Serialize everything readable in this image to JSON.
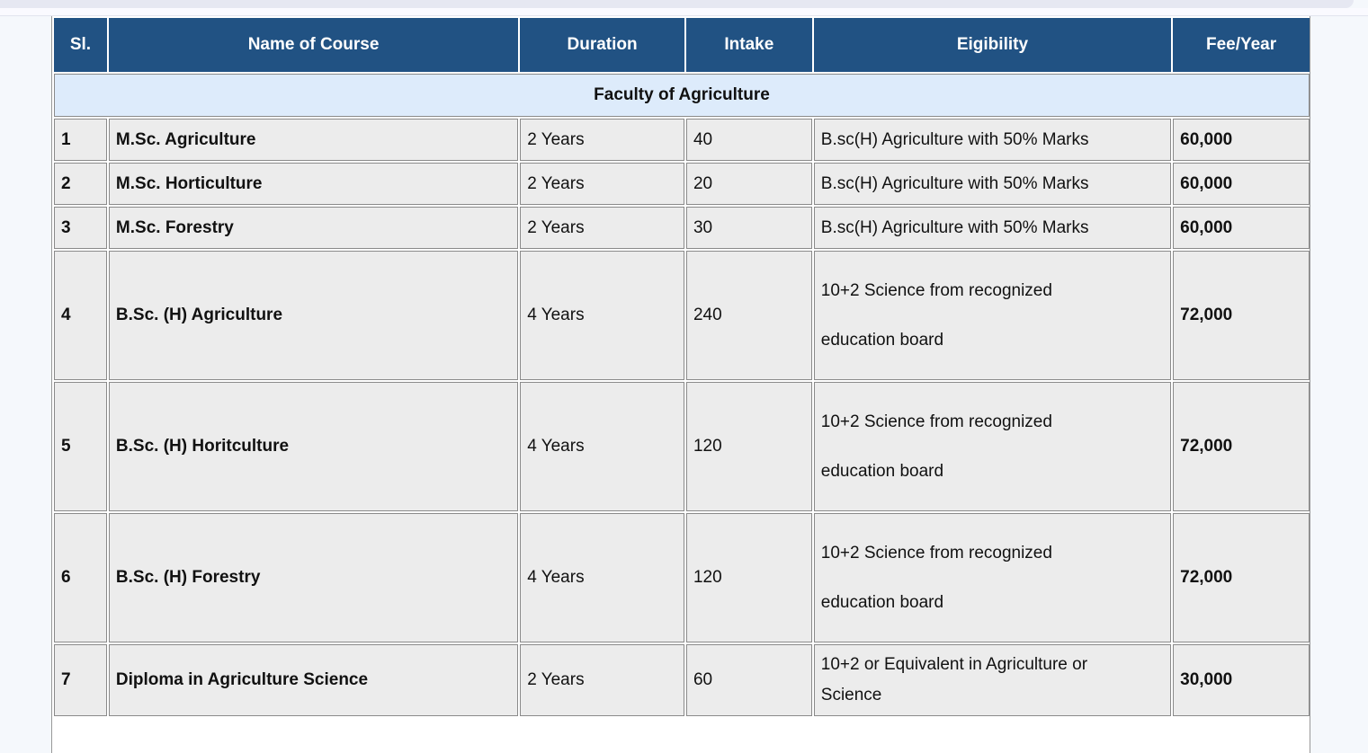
{
  "table": {
    "headers": [
      "Sl.",
      "Name of Course",
      "Duration",
      "Intake",
      "Eigibility",
      "Fee/Year"
    ],
    "section": "Faculty of Agriculture",
    "rows": [
      {
        "sl": "1",
        "name": "M.Sc. Agriculture",
        "duration": "2 Years",
        "intake": "40",
        "eligibility": [
          "B.sc(H) Agriculture with 50% Marks"
        ],
        "fee": "60,000"
      },
      {
        "sl": "2",
        "name": "M.Sc. Horticulture",
        "duration": "2 Years",
        "intake": "20",
        "eligibility": [
          "B.sc(H) Agriculture with 50% Marks"
        ],
        "fee": "60,000"
      },
      {
        "sl": "3",
        "name": "M.Sc. Forestry",
        "duration": "2 Years",
        "intake": "30",
        "eligibility": [
          "B.sc(H) Agriculture with 50% Marks"
        ],
        "fee": "60,000"
      },
      {
        "sl": "4",
        "name": "B.Sc. (H) Agriculture",
        "duration": "4 Years",
        "intake": "240",
        "eligibility": [
          "10+2 Science from recognized",
          "education board"
        ],
        "fee": "72,000"
      },
      {
        "sl": "5",
        "name": "B.Sc. (H) Horitculture",
        "duration": "4 Years",
        "intake": "120",
        "eligibility": [
          "10+2 Science from recognized",
          "education board"
        ],
        "fee": "72,000"
      },
      {
        "sl": "6",
        "name": "B.Sc. (H) Forestry",
        "duration": "4 Years",
        "intake": "120",
        "eligibility": [
          "10+2 Science from recognized",
          "education board"
        ],
        "fee": "72,000"
      },
      {
        "sl": "7",
        "name": "Diploma in Agriculture Science",
        "duration": "2 Years",
        "intake": "60",
        "eligibility": [
          "10+2 or Equivalent in Agriculture or",
          "Science"
        ],
        "fee": "30,000"
      }
    ]
  }
}
